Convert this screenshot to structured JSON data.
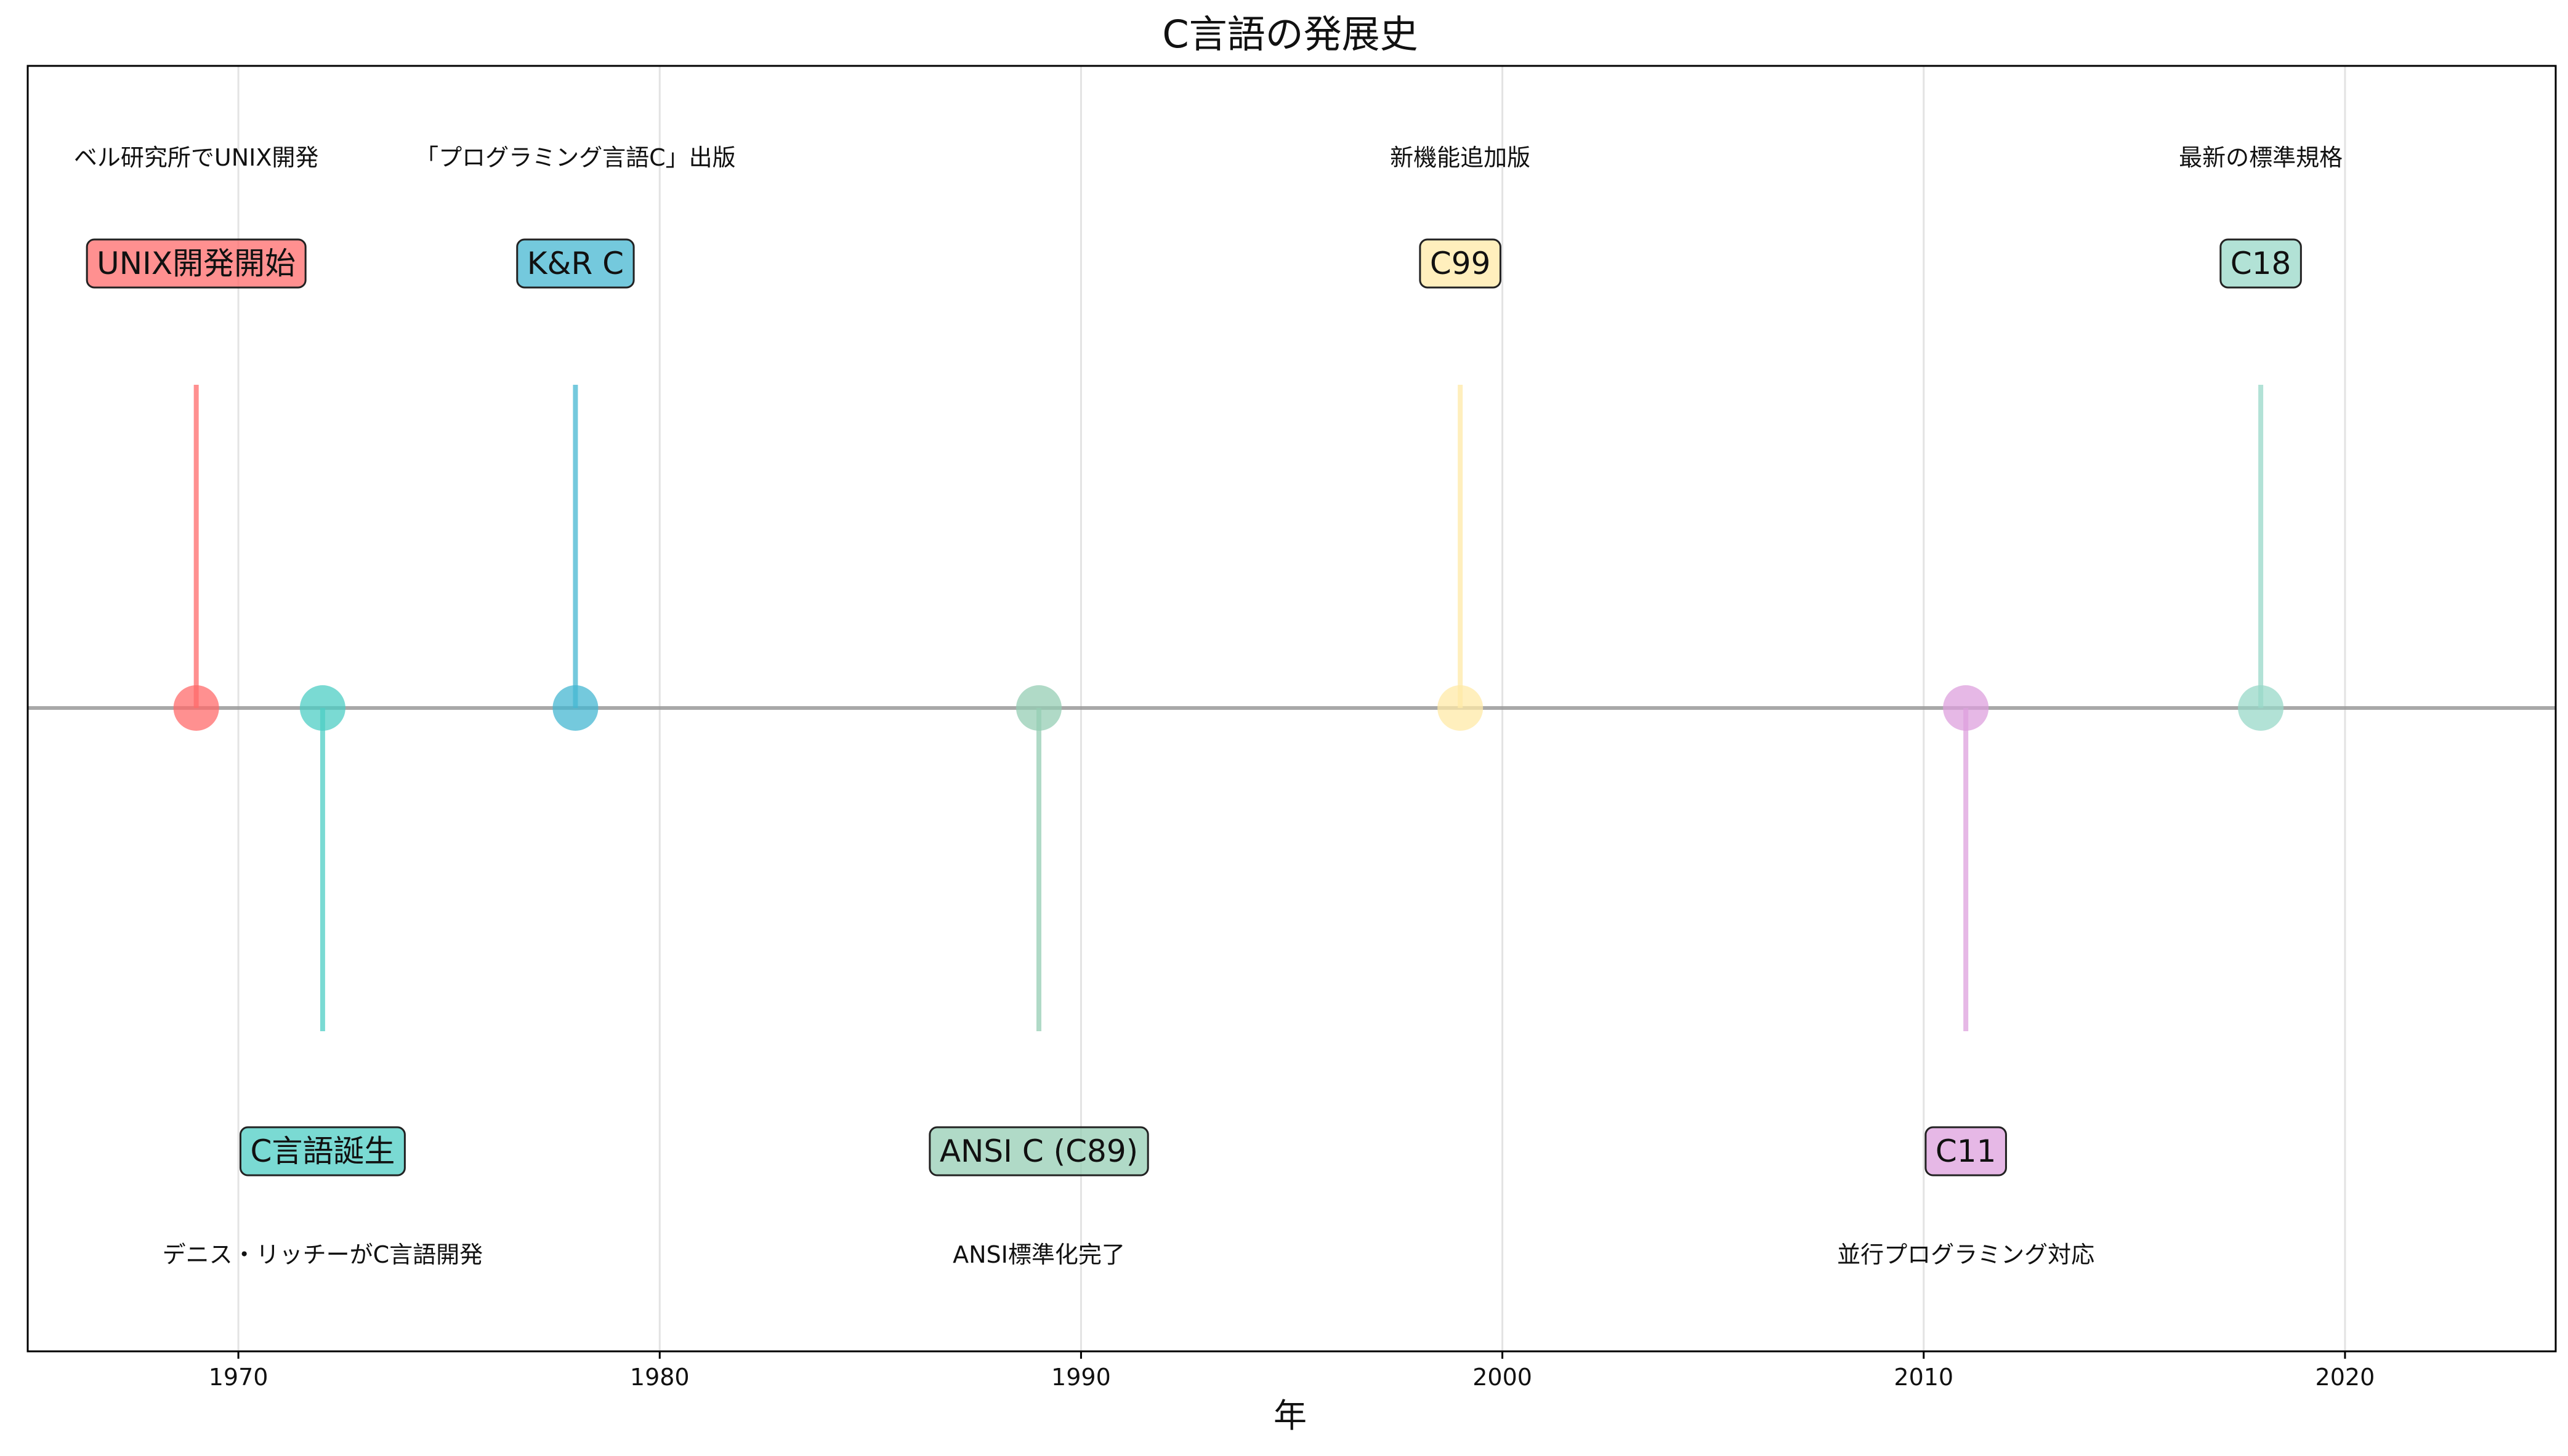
{
  "chart_data": {
    "type": "timeline",
    "title": "C言語の発展史",
    "xlabel": "年",
    "xlim": [
      1965,
      2025
    ],
    "xticks": [
      1970,
      1980,
      1990,
      2000,
      2010,
      2020
    ],
    "grid": "vertical",
    "events": [
      {
        "year": 1969,
        "label": "UNIX開発開始",
        "description": "ベル研究所でUNIX開発",
        "side": "above",
        "color": "#FF6B6B"
      },
      {
        "year": 1972,
        "label": "C言語誕生",
        "description": "デニス・リッチーがC言語開発",
        "side": "below",
        "color": "#4ECDC4"
      },
      {
        "year": 1978,
        "label": "K&R C",
        "description": "「プログラミング言語C」出版",
        "side": "above",
        "color": "#45B7D1"
      },
      {
        "year": 1989,
        "label": "ANSI C (C89)",
        "description": "ANSI標準化完了",
        "side": "below",
        "color": "#96CEB4"
      },
      {
        "year": 1999,
        "label": "C99",
        "description": "新機能追加版",
        "side": "above",
        "color": "#FFEAA7"
      },
      {
        "year": 2011,
        "label": "C11",
        "description": "並行プログラミング対応",
        "side": "below",
        "color": "#DDA0DD"
      },
      {
        "year": 2018,
        "label": "C18",
        "description": "最新の標準規格",
        "side": "above",
        "color": "#98D8C8"
      }
    ]
  }
}
